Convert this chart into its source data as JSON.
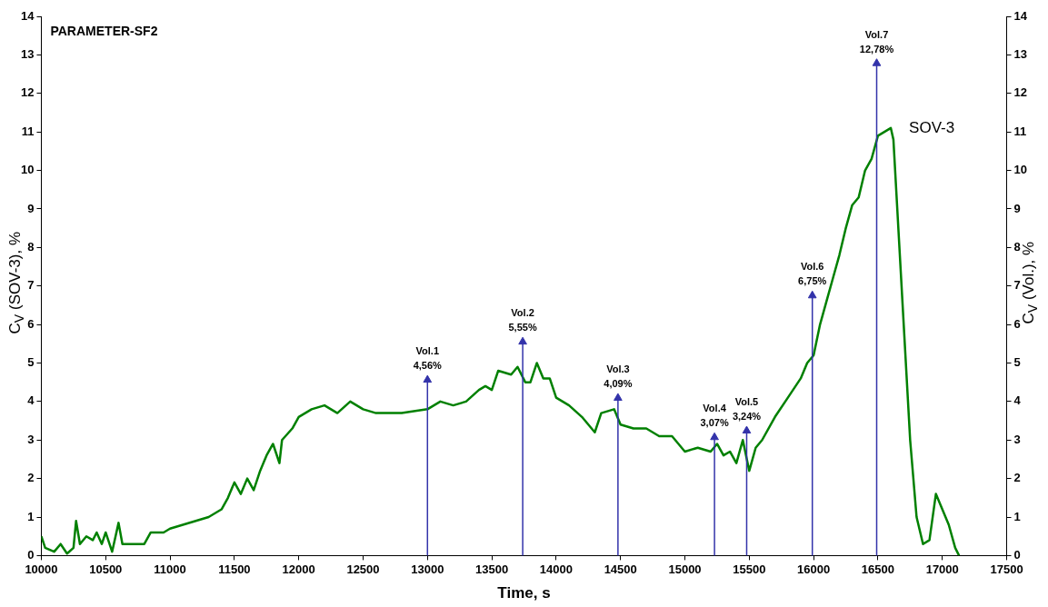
{
  "chart_data": {
    "type": "line",
    "title": "PARAMETER-SF2",
    "xlabel": "Time, s",
    "ylabel": "C$_{V}$ (SOV-3), %",
    "y2label": "C$_{V}$ (Vol.), %",
    "xlim": [
      10000,
      17500
    ],
    "xticks": [
      10000,
      10500,
      11000,
      11500,
      12000,
      12500,
      13000,
      13500,
      14000,
      14500,
      15000,
      15500,
      16000,
      16500,
      17000,
      17500
    ],
    "ylim": [
      0,
      14
    ],
    "yticks": [
      0,
      1,
      2,
      3,
      4,
      5,
      6,
      7,
      8,
      9,
      10,
      11,
      12,
      13,
      14
    ],
    "y2lim": [
      0,
      14
    ],
    "y2ticks": [
      0,
      1,
      2,
      3,
      4,
      5,
      6,
      7,
      8,
      9,
      10,
      11,
      12,
      13,
      14
    ],
    "grid": false,
    "legend": false,
    "marker": "none",
    "line_style": "solid",
    "series": [
      {
        "name": "SOV-3",
        "color": "#008000",
        "x": [
          10000,
          10030,
          10100,
          10150,
          10200,
          10250,
          10270,
          10300,
          10350,
          10400,
          10430,
          10470,
          10500,
          10550,
          10600,
          10630,
          10700,
          10800,
          10850,
          10950,
          11000,
          11100,
          11200,
          11300,
          11400,
          11450,
          11500,
          11550,
          11600,
          11650,
          11700,
          11750,
          11800,
          11850,
          11870,
          11950,
          12000,
          12100,
          12200,
          12300,
          12400,
          12500,
          12600,
          12800,
          13000,
          13100,
          13200,
          13300,
          13400,
          13450,
          13500,
          13550,
          13650,
          13700,
          13760,
          13800,
          13850,
          13900,
          13950,
          14000,
          14100,
          14200,
          14300,
          14350,
          14450,
          14500,
          14600,
          14700,
          14800,
          14900,
          15000,
          15100,
          15200,
          15250,
          15300,
          15350,
          15400,
          15450,
          15500,
          15550,
          15600,
          15700,
          15800,
          15900,
          15950,
          16000,
          16050,
          16100,
          16150,
          16200,
          16250,
          16300,
          16350,
          16400,
          16450,
          16500,
          16550,
          16600,
          16620,
          16650,
          16700,
          16750,
          16800,
          16850,
          16900,
          16950,
          17000,
          17050,
          17100,
          17130
        ],
        "values": [
          0.5,
          0.2,
          0.1,
          0.3,
          0.05,
          0.2,
          0.9,
          0.3,
          0.5,
          0.4,
          0.6,
          0.3,
          0.6,
          0.1,
          0.85,
          0.3,
          0.3,
          0.3,
          0.6,
          0.6,
          0.7,
          0.8,
          0.9,
          1.0,
          1.2,
          1.5,
          1.9,
          1.6,
          2.0,
          1.7,
          2.2,
          2.6,
          2.9,
          2.4,
          3.0,
          3.3,
          3.6,
          3.8,
          3.9,
          3.7,
          4.0,
          3.8,
          3.7,
          3.7,
          3.8,
          4.0,
          3.9,
          4.0,
          4.3,
          4.4,
          4.3,
          4.8,
          4.7,
          4.9,
          4.5,
          4.5,
          5.0,
          4.6,
          4.6,
          4.1,
          3.9,
          3.6,
          3.2,
          3.7,
          3.8,
          3.4,
          3.3,
          3.3,
          3.1,
          3.1,
          2.7,
          2.8,
          2.7,
          2.9,
          2.6,
          2.7,
          2.4,
          3.0,
          2.2,
          2.8,
          3.0,
          3.6,
          4.1,
          4.6,
          5.0,
          5.2,
          6.0,
          6.6,
          7.2,
          7.8,
          8.5,
          9.1,
          9.3,
          10.0,
          10.3,
          10.9,
          11.0,
          11.1,
          10.8,
          9.0,
          6.0,
          3.0,
          1.0,
          0.3,
          0.4,
          1.6,
          1.2,
          0.8,
          0.2,
          0
        ]
      },
      {
        "type": "lollipop",
        "axis": "y2",
        "color": "#3333aa",
        "marker": "triangle",
        "x": [
          13000,
          13740,
          14480,
          15230,
          15480,
          15990,
          16490
        ],
        "values": [
          4.56,
          5.55,
          4.09,
          3.07,
          3.24,
          6.75,
          12.78
        ],
        "value_labels": [
          "Vol.1\n4,56%",
          "Vol.2\n5,55%",
          "Vol.3\n4,09%",
          "Vol.4\n3,07%",
          "Vol.5\n3,24%",
          "Vol.6\n6,75%",
          "Vol.7\n12,78%"
        ]
      }
    ]
  }
}
